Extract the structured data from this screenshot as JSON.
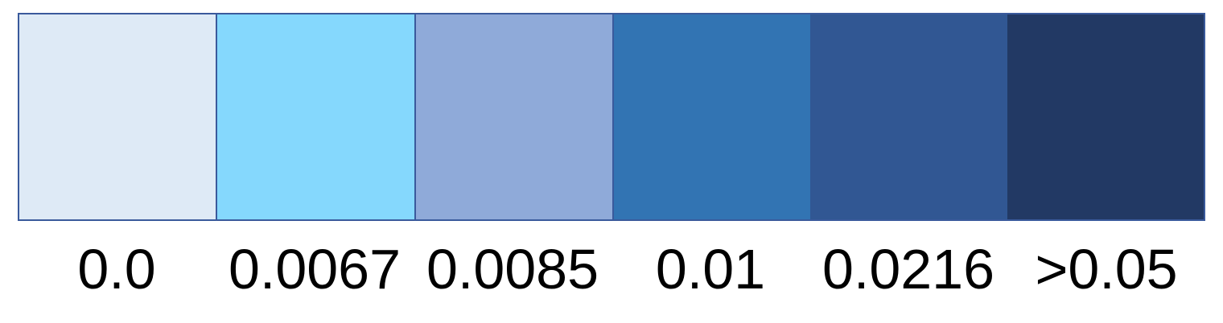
{
  "legend": {
    "bins": [
      {
        "label": "0.0",
        "color": "#deeaf6"
      },
      {
        "label": "0.0067",
        "color": "#85d8fd"
      },
      {
        "label": "0.0085",
        "color": "#8faad9"
      },
      {
        "label": "0.01",
        "color": "#3274b3"
      },
      {
        "label": "0.0216",
        "color": "#315793"
      },
      {
        "label": ">0.05",
        "color": "#223964"
      }
    ]
  }
}
